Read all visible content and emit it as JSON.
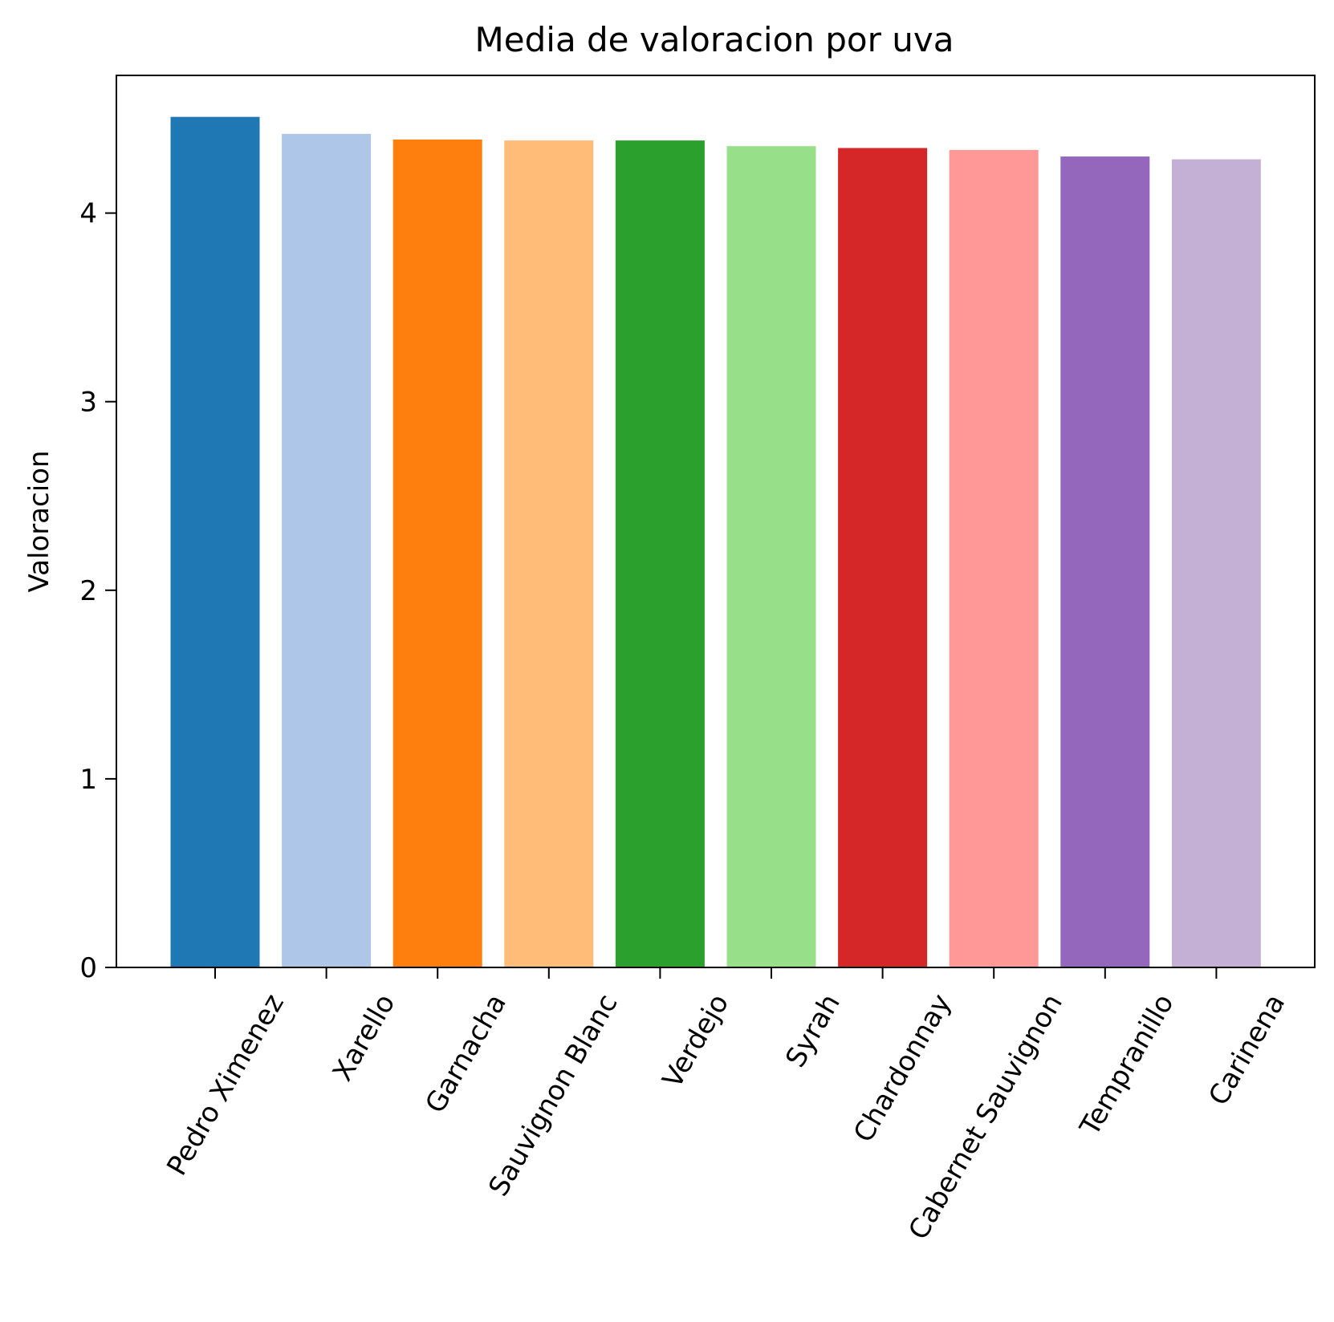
{
  "chart_data": {
    "type": "bar",
    "title": "Media de valoracion por uva",
    "xlabel": "",
    "ylabel": "Valoracion",
    "ylim": [
      0,
      4.73
    ],
    "yticks": [
      0,
      1,
      2,
      3,
      4
    ],
    "grid": false,
    "categories": [
      "Pedro Ximenez",
      "Xarello",
      "Garnacha",
      "Sauvignon Blanc",
      "Verdejo",
      "Syrah",
      "Chardonnay",
      "Cabernet Sauvignon",
      "Tempranillo",
      "Carinena"
    ],
    "values": [
      4.51,
      4.42,
      4.39,
      4.385,
      4.385,
      4.355,
      4.345,
      4.335,
      4.3,
      4.285
    ],
    "colors": [
      "#1f77b4",
      "#aec7e8",
      "#ff7f0e",
      "#ffbb78",
      "#2ca02c",
      "#98df8a",
      "#d62728",
      "#ff9896",
      "#9467bd",
      "#c5b0d5"
    ]
  }
}
